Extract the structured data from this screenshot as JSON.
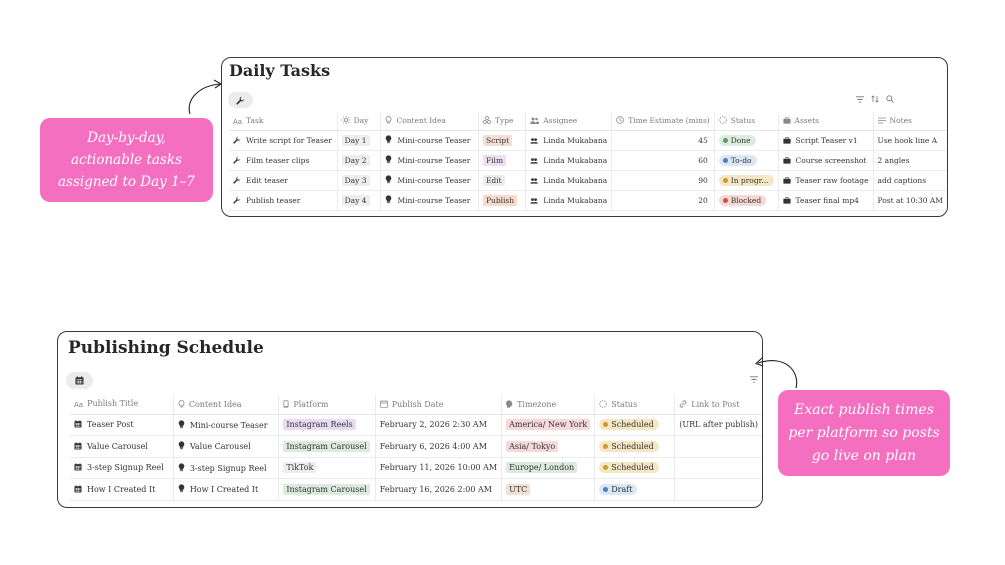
{
  "daily_tasks": {
    "title": "Daily Tasks",
    "columns": [
      "Task",
      "Day",
      "Content Idea",
      "Type",
      "Assignee",
      "Time Estimate (mins)",
      "Status",
      "Assets",
      "Notes"
    ],
    "rows": [
      {
        "task": "Write script for Teaser",
        "day": "Day 1",
        "content_idea": "Mini-course Teaser",
        "type": "Script",
        "type_color": "#f4dfd6",
        "assignee": "Linda Mukabana",
        "time": "45",
        "status": "Done",
        "status_bg": "#dcecdf",
        "status_dot": "#5b9a6a",
        "assets": "Script Teaser v1",
        "notes": "Use hook line A"
      },
      {
        "task": "Film teaser clips",
        "day": "Day 2",
        "content_idea": "Mini-course Teaser",
        "type": "Film",
        "type_color": "#ecdff2",
        "assignee": "Linda Mukabana",
        "time": "60",
        "status": "To-do",
        "status_bg": "#dbe7f5",
        "status_dot": "#4a7fc1",
        "assets": "Course screenshot",
        "notes": "2 angles"
      },
      {
        "task": "Edit teaser",
        "day": "Day 3",
        "content_idea": "Mini-course Teaser",
        "type": "Edit",
        "type_color": "#ededed",
        "assignee": "Linda Mukabana",
        "time": "90",
        "status": "In progr...",
        "status_bg": "#f6e7c4",
        "status_dot": "#c99a2e",
        "assets": "Teaser raw footage",
        "notes": "add captions"
      },
      {
        "task": "Publish teaser",
        "day": "Day 4",
        "content_idea": "Mini-course Teaser",
        "type": "Publish",
        "type_color": "#f8dccb",
        "assignee": "Linda Mukabana",
        "time": "20",
        "status": "Blocked",
        "status_bg": "#f6d9d6",
        "status_dot": "#c9544a",
        "assets": "Teaser final mp4",
        "notes": "Post at 10:30 AM"
      }
    ]
  },
  "publishing_schedule": {
    "title": "Publishing Schedule",
    "columns": [
      "Publish Title",
      "Content Idea",
      "Platform",
      "Publish Date",
      "Timezone",
      "Status",
      "Link to Post"
    ],
    "rows": [
      {
        "title": "Teaser Post",
        "content_idea": "Mini-course Teaser",
        "platform": "Instagram Reels",
        "platform_color": "#e8dcf3",
        "date": "February 2, 2026 2:30 AM",
        "timezone": "America/ New York",
        "tz_color": "#f6d9dc",
        "status": "Scheduled",
        "status_bg": "#f6e7c4",
        "status_dot": "#c99a2e",
        "link": "(URL after publish)"
      },
      {
        "title": "Value Carousel",
        "content_idea": "Value Carousel",
        "platform": "Instagram Carousel",
        "platform_color": "#dcebdd",
        "date": "February 6, 2026 4:00 AM",
        "timezone": "Asia/ Tokyo",
        "tz_color": "#f6d9dc",
        "status": "Scheduled",
        "status_bg": "#f6e7c4",
        "status_dot": "#c99a2e",
        "link": ""
      },
      {
        "title": "3-step Signup Reel",
        "content_idea": "3-step Signup Reel",
        "platform": "TikTok",
        "platform_color": "#ededed",
        "date": "February 11, 2026 10:00 AM",
        "timezone": "Europe/ London",
        "tz_color": "#dcebdd",
        "status": "Scheduled",
        "status_bg": "#f6e7c4",
        "status_dot": "#c99a2e",
        "link": ""
      },
      {
        "title": "How I Created It",
        "content_idea": "How I Created It",
        "platform": "Instagram Carousel",
        "platform_color": "#dcebdd",
        "date": "February 16, 2026 2:00 AM",
        "timezone": "UTC",
        "tz_color": "#f4dfd6",
        "status": "Draft",
        "status_bg": "#dbe7f5",
        "status_dot": "#4a7fc1",
        "link": ""
      }
    ]
  },
  "callouts": {
    "left": [
      "Day-by-day,",
      "actionable tasks",
      "assigned to Day 1–7"
    ],
    "right": [
      "Exact publish times",
      "per platform so posts",
      "go live on plan"
    ]
  },
  "icons": {
    "daily_view": "wrench-icon",
    "publish_view": "calendar-icon",
    "filter": "filter-icon",
    "sort": "sort-icon",
    "search": "search-icon"
  }
}
